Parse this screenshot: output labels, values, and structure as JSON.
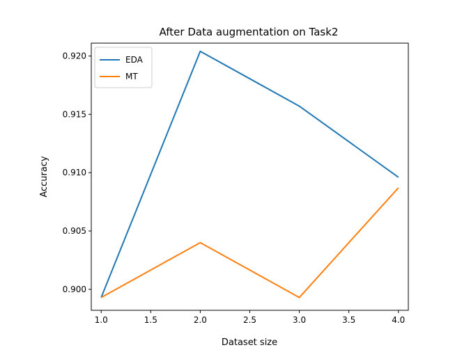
{
  "chart_data": {
    "type": "line",
    "title": "After Data augmentation on Task2",
    "xlabel": "Dataset size",
    "ylabel": "Accuracy",
    "x": [
      1.0,
      2.0,
      3.0,
      4.0
    ],
    "xlim": [
      0.9,
      4.1
    ],
    "ylim": [
      0.8982,
      0.9211
    ],
    "xticks": [
      1.0,
      1.5,
      2.0,
      2.5,
      3.0,
      3.5,
      4.0
    ],
    "xtick_labels": [
      "1.0",
      "1.5",
      "2.0",
      "2.5",
      "3.0",
      "3.5",
      "4.0"
    ],
    "yticks": [
      0.9,
      0.905,
      0.91,
      0.915,
      0.92
    ],
    "ytick_labels": [
      "0.900",
      "0.905",
      "0.910",
      "0.915",
      "0.920"
    ],
    "grid": false,
    "legend_position": "top-left",
    "series": [
      {
        "name": "EDA",
        "color": "#1f77b4",
        "values": [
          0.8993,
          0.9204,
          0.9157,
          0.9096
        ]
      },
      {
        "name": "MT",
        "color": "#ff7f0e",
        "values": [
          0.8993,
          0.904,
          0.8993,
          0.9087
        ]
      }
    ]
  }
}
